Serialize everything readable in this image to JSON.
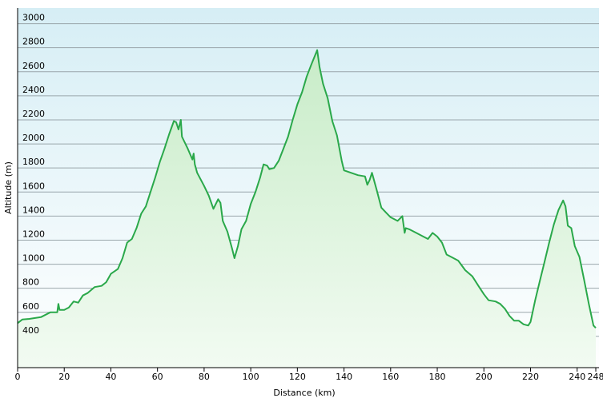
{
  "chart_data": {
    "type": "area",
    "xlabel": "Distance  (km)",
    "ylabel": "Altitude (m)",
    "x": [
      0,
      2,
      5,
      10,
      14,
      17,
      17.5,
      18,
      20,
      22,
      24,
      26,
      28,
      30,
      33,
      36,
      38,
      40,
      43,
      45,
      47,
      49,
      51,
      53,
      55,
      57,
      59,
      61,
      63,
      65,
      67,
      68,
      69,
      70,
      70.5,
      73,
      75,
      75.5,
      76,
      77,
      80,
      82,
      84,
      86,
      87,
      88,
      90,
      92,
      93,
      94.5,
      96,
      98,
      100,
      102,
      104,
      105.5,
      107,
      108,
      110,
      112,
      114,
      116,
      118,
      120,
      122,
      124,
      126,
      128.5,
      129.5,
      131,
      133,
      135,
      137,
      139,
      140,
      143,
      146,
      149,
      150,
      151,
      152,
      154,
      156,
      158,
      160,
      163,
      165,
      166,
      166.5,
      168,
      171,
      174,
      176,
      178,
      180,
      182,
      184,
      186,
      189,
      192,
      195,
      198,
      200,
      202,
      205,
      207,
      209,
      211,
      213,
      215,
      217,
      219,
      220,
      222,
      224,
      226,
      228,
      230,
      232,
      234,
      235,
      236,
      237.5,
      239,
      241,
      243,
      245,
      247,
      248
    ],
    "values": [
      510,
      540,
      545,
      560,
      600,
      600,
      670,
      620,
      620,
      640,
      690,
      680,
      740,
      760,
      810,
      820,
      850,
      920,
      960,
      1050,
      1180,
      1210,
      1300,
      1420,
      1480,
      1600,
      1720,
      1850,
      1960,
      2080,
      2190,
      2180,
      2120,
      2200,
      2060,
      1960,
      1870,
      1920,
      1830,
      1760,
      1650,
      1570,
      1460,
      1540,
      1510,
      1360,
      1270,
      1130,
      1050,
      1150,
      1290,
      1360,
      1500,
      1600,
      1720,
      1830,
      1820,
      1790,
      1800,
      1860,
      1960,
      2060,
      2200,
      2330,
      2430,
      2560,
      2660,
      2780,
      2640,
      2500,
      2380,
      2190,
      2070,
      1860,
      1780,
      1760,
      1740,
      1730,
      1660,
      1700,
      1760,
      1620,
      1470,
      1430,
      1390,
      1360,
      1400,
      1260,
      1300,
      1290,
      1260,
      1230,
      1210,
      1260,
      1230,
      1180,
      1080,
      1060,
      1030,
      950,
      900,
      810,
      750,
      700,
      690,
      670,
      630,
      570,
      530,
      530,
      500,
      490,
      520,
      700,
      860,
      1020,
      1180,
      1330,
      1450,
      1530,
      1480,
      1320,
      1300,
      1150,
      1060,
      870,
      670,
      490,
      470
    ],
    "color": "#2aa84a",
    "xlim": [
      0,
      248
    ],
    "xticks": [
      0,
      20,
      40,
      60,
      80,
      100,
      120,
      140,
      160,
      180,
      200,
      220,
      240,
      248
    ],
    "ylim": [
      140,
      3130
    ],
    "yticks": [
      400,
      600,
      800,
      1000,
      1200,
      1400,
      1600,
      1800,
      2000,
      2200,
      2400,
      2600,
      2800,
      3000
    ],
    "grid": true
  }
}
